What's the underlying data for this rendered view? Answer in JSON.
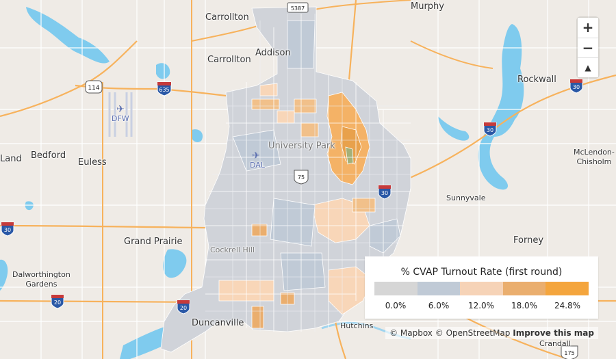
{
  "map": {
    "cities": [
      {
        "label": "Carrollton"
      },
      {
        "label": "Carrollton"
      },
      {
        "label": "Addison"
      },
      {
        "label": "Murphy"
      },
      {
        "label": "Rockwall"
      },
      {
        "label": "McLendon-\nChisholm"
      },
      {
        "label": "Sunnyvale"
      },
      {
        "label": "Forney"
      },
      {
        "label": "Bedford"
      },
      {
        "label": "Euless"
      },
      {
        "label": "Land"
      },
      {
        "label": "Grand Prairie"
      },
      {
        "label": "Dalworthington\nGardens"
      },
      {
        "label": "Duncanville"
      },
      {
        "label": "Hutchins"
      },
      {
        "label": "Crandall"
      },
      {
        "label": "University Park"
      },
      {
        "label": "Cockrell Hill"
      }
    ],
    "airports": [
      {
        "code": "DFW"
      },
      {
        "code": "DAL"
      }
    ],
    "shields": [
      {
        "num": "114"
      },
      {
        "num": "635"
      },
      {
        "num": "30"
      },
      {
        "num": "30"
      },
      {
        "num": "30"
      },
      {
        "num": "30"
      },
      {
        "num": "20"
      },
      {
        "num": "20"
      },
      {
        "num": "75"
      },
      {
        "num": "175"
      },
      {
        "num": "5387"
      }
    ]
  },
  "zoom": {
    "in_label": "+",
    "out_label": "−",
    "compass_label": "▲"
  },
  "legend": {
    "title": "% CVAP Turnout Rate (first round)",
    "colors": [
      "#d6d6d6",
      "#c0cad6",
      "#f6d3b7",
      "#eaae6e",
      "#f4a53d"
    ],
    "ticks": [
      "0.0%",
      "6.0%",
      "12.0%",
      "18.0%",
      "24.8%"
    ]
  },
  "attribution": {
    "mapbox": "© Mapbox",
    "osm": "© OpenStreetMap",
    "improve": "Improve this map"
  }
}
